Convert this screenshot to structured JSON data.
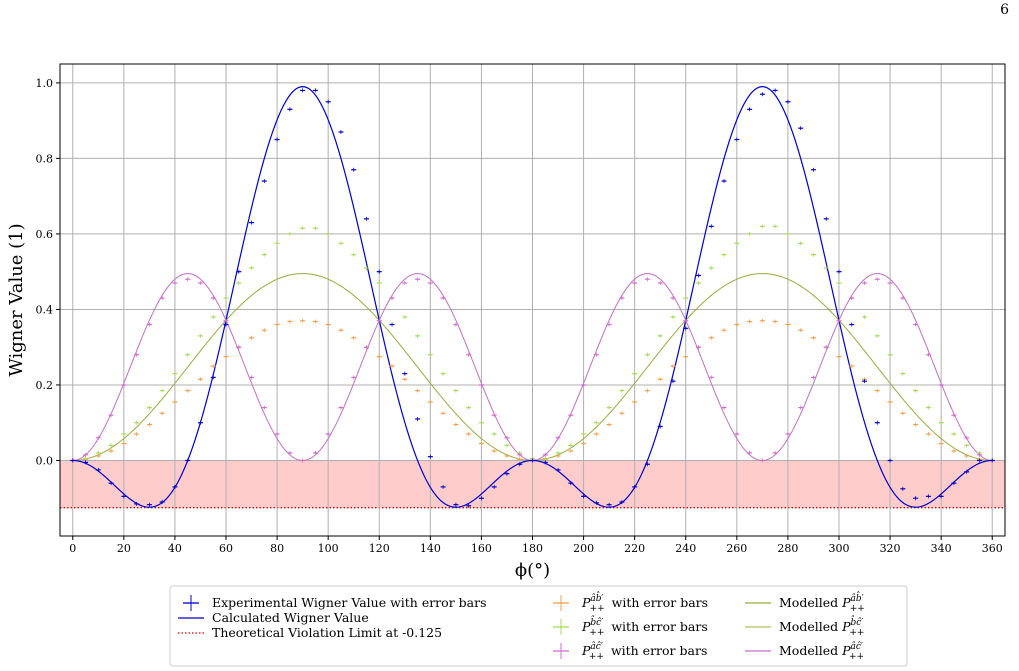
{
  "page_number": "6",
  "chart_data": {
    "type": "line",
    "title": "",
    "xlabel": "ϕ(°)",
    "ylabel": "Wigner Value (1)",
    "xlim": [
      -5,
      365
    ],
    "ylim": [
      -0.2,
      1.05
    ],
    "xticks": [
      "0",
      "20",
      "40",
      "60",
      "80",
      "100",
      "120",
      "140",
      "160",
      "180",
      "200",
      "220",
      "240",
      "260",
      "280",
      "300",
      "320",
      "340",
      "360"
    ],
    "yticks": [
      "0.0",
      "0.2",
      "0.4",
      "0.6",
      "0.8",
      "1.0"
    ],
    "grid": true,
    "violation_band": {
      "from": -0.125,
      "to": 0.0,
      "color": "#ffcccc"
    },
    "violation_limit": {
      "value": -0.125,
      "color": "#e00000"
    },
    "measured_x": [
      0,
      5,
      10,
      15,
      20,
      25,
      30,
      35,
      40,
      45,
      50,
      55,
      60,
      65,
      70,
      75,
      80,
      85,
      90,
      95,
      100,
      105,
      110,
      115,
      120,
      125,
      130,
      135,
      140,
      145,
      150,
      155,
      160,
      165,
      170,
      175,
      180,
      185,
      190,
      195,
      200,
      205,
      210,
      215,
      220,
      225,
      230,
      235,
      240,
      245,
      250,
      255,
      260,
      265,
      270,
      275,
      280,
      285,
      290,
      295,
      300,
      305,
      310,
      315,
      320,
      325,
      330,
      335,
      340,
      345,
      350,
      355,
      360
    ],
    "series": [
      {
        "name": "Experimental Wigner Value with error bars",
        "kind": "errorbar",
        "color": "#0000cc",
        "values": [
          0.0,
          -0.005,
          -0.025,
          -0.06,
          -0.095,
          -0.115,
          -0.117,
          -0.11,
          -0.07,
          0.0,
          0.1,
          0.22,
          0.36,
          0.5,
          0.63,
          0.74,
          0.85,
          0.93,
          0.98,
          0.98,
          0.95,
          0.87,
          0.77,
          0.64,
          0.5,
          0.36,
          0.23,
          0.11,
          0.01,
          -0.07,
          -0.117,
          -0.12,
          -0.1,
          -0.07,
          -0.035,
          -0.01,
          0.0,
          -0.005,
          -0.025,
          -0.06,
          -0.095,
          -0.112,
          -0.117,
          -0.11,
          -0.07,
          -0.01,
          0.09,
          0.21,
          0.35,
          0.49,
          0.62,
          0.74,
          0.85,
          0.93,
          0.97,
          0.98,
          0.95,
          0.88,
          0.77,
          0.64,
          0.5,
          0.36,
          0.21,
          0.1,
          0.0,
          -0.075,
          -0.1,
          -0.095,
          -0.095,
          -0.06,
          -0.03,
          0.0,
          0.0
        ]
      },
      {
        "name": "Calculated Wigner Value",
        "kind": "line",
        "color": "#0000cc",
        "formula": "P_ab + P_bc - P_ac"
      },
      {
        "name": "Theoretical Violation Limit at -0.125",
        "kind": "hline",
        "color": "#e00000",
        "value": -0.125
      },
      {
        "name_prefix": "P",
        "name_sub": "++",
        "name_sup": "âb̂′",
        "name_suffix": " with error bars",
        "kind": "errorbar",
        "color": "#f0a050",
        "values": [
          0.0,
          0.003,
          0.012,
          0.025,
          0.045,
          0.07,
          0.095,
          0.125,
          0.155,
          0.185,
          0.215,
          0.25,
          0.275,
          0.3,
          0.325,
          0.345,
          0.36,
          0.368,
          0.37,
          0.368,
          0.36,
          0.345,
          0.325,
          0.3,
          0.275,
          0.25,
          0.215,
          0.185,
          0.155,
          0.125,
          0.095,
          0.07,
          0.045,
          0.025,
          0.012,
          0.003,
          0.0,
          0.003,
          0.012,
          0.025,
          0.045,
          0.07,
          0.095,
          0.125,
          0.155,
          0.185,
          0.215,
          0.25,
          0.275,
          0.3,
          0.325,
          0.345,
          0.36,
          0.368,
          0.37,
          0.368,
          0.36,
          0.345,
          0.325,
          0.3,
          0.275,
          0.25,
          0.215,
          0.185,
          0.155,
          0.125,
          0.095,
          0.07,
          0.045,
          0.025,
          0.012,
          0.003,
          0.0
        ]
      },
      {
        "name_prefix": "P",
        "name_sub": "++",
        "name_sup": "b̂ĉ′",
        "name_suffix": " with error bars",
        "kind": "errorbar",
        "color": "#a8d860",
        "values": [
          0.0,
          0.005,
          0.02,
          0.04,
          0.07,
          0.1,
          0.14,
          0.185,
          0.23,
          0.28,
          0.33,
          0.38,
          0.43,
          0.47,
          0.51,
          0.545,
          0.575,
          0.6,
          0.615,
          0.615,
          0.6,
          0.575,
          0.545,
          0.51,
          0.47,
          0.43,
          0.38,
          0.33,
          0.28,
          0.23,
          0.185,
          0.14,
          0.1,
          0.07,
          0.04,
          0.02,
          0.005,
          0.005,
          0.02,
          0.04,
          0.07,
          0.1,
          0.14,
          0.185,
          0.23,
          0.28,
          0.33,
          0.38,
          0.43,
          0.47,
          0.51,
          0.545,
          0.575,
          0.6,
          0.62,
          0.62,
          0.6,
          0.575,
          0.545,
          0.51,
          0.47,
          0.43,
          0.38,
          0.33,
          0.28,
          0.23,
          0.185,
          0.14,
          0.1,
          0.07,
          0.04,
          0.02,
          0.0
        ]
      },
      {
        "name_prefix": "P",
        "name_sub": "++",
        "name_sup": "âĉ′",
        "name_suffix": " with error bars",
        "kind": "errorbar",
        "color": "#d070d0",
        "values": [
          0.0,
          0.015,
          0.06,
          0.12,
          0.2,
          0.28,
          0.36,
          0.43,
          0.47,
          0.48,
          0.47,
          0.43,
          0.37,
          0.3,
          0.22,
          0.14,
          0.07,
          0.02,
          0.0,
          0.02,
          0.07,
          0.14,
          0.22,
          0.3,
          0.37,
          0.43,
          0.47,
          0.48,
          0.47,
          0.43,
          0.36,
          0.28,
          0.2,
          0.12,
          0.06,
          0.015,
          0.0,
          0.015,
          0.06,
          0.12,
          0.2,
          0.28,
          0.36,
          0.43,
          0.47,
          0.48,
          0.47,
          0.43,
          0.37,
          0.3,
          0.22,
          0.14,
          0.07,
          0.02,
          0.0,
          0.02,
          0.07,
          0.14,
          0.22,
          0.3,
          0.37,
          0.43,
          0.47,
          0.48,
          0.47,
          0.43,
          0.36,
          0.28,
          0.2,
          0.12,
          0.06,
          0.015,
          0.0
        ]
      },
      {
        "name_prefix": "Modelled P",
        "name_sub": "++",
        "name_sup": "âb̂′",
        "name_suffix": "",
        "kind": "line",
        "color": "#9aaa40",
        "formula": "0.495*sin^2(phi)"
      },
      {
        "name_prefix": "Modelled P",
        "name_sub": "++",
        "name_sup": "b̂ĉ′",
        "name_suffix": "",
        "kind": "line",
        "color": "#b0c060",
        "formula": "0.495*sin^2(phi)"
      },
      {
        "name_prefix": "Modelled P",
        "name_sub": "++",
        "name_sup": "âĉ′",
        "name_suffix": "",
        "kind": "line",
        "color": "#c070c0",
        "formula": "0.495*sin^2(2phi)"
      }
    ],
    "legend": {
      "placement": "bottom-center",
      "col1": [
        "Experimental Wigner Value with error bars",
        "Calculated Wigner Value",
        "Theoretical Violation Limit at -0.125"
      ]
    }
  }
}
